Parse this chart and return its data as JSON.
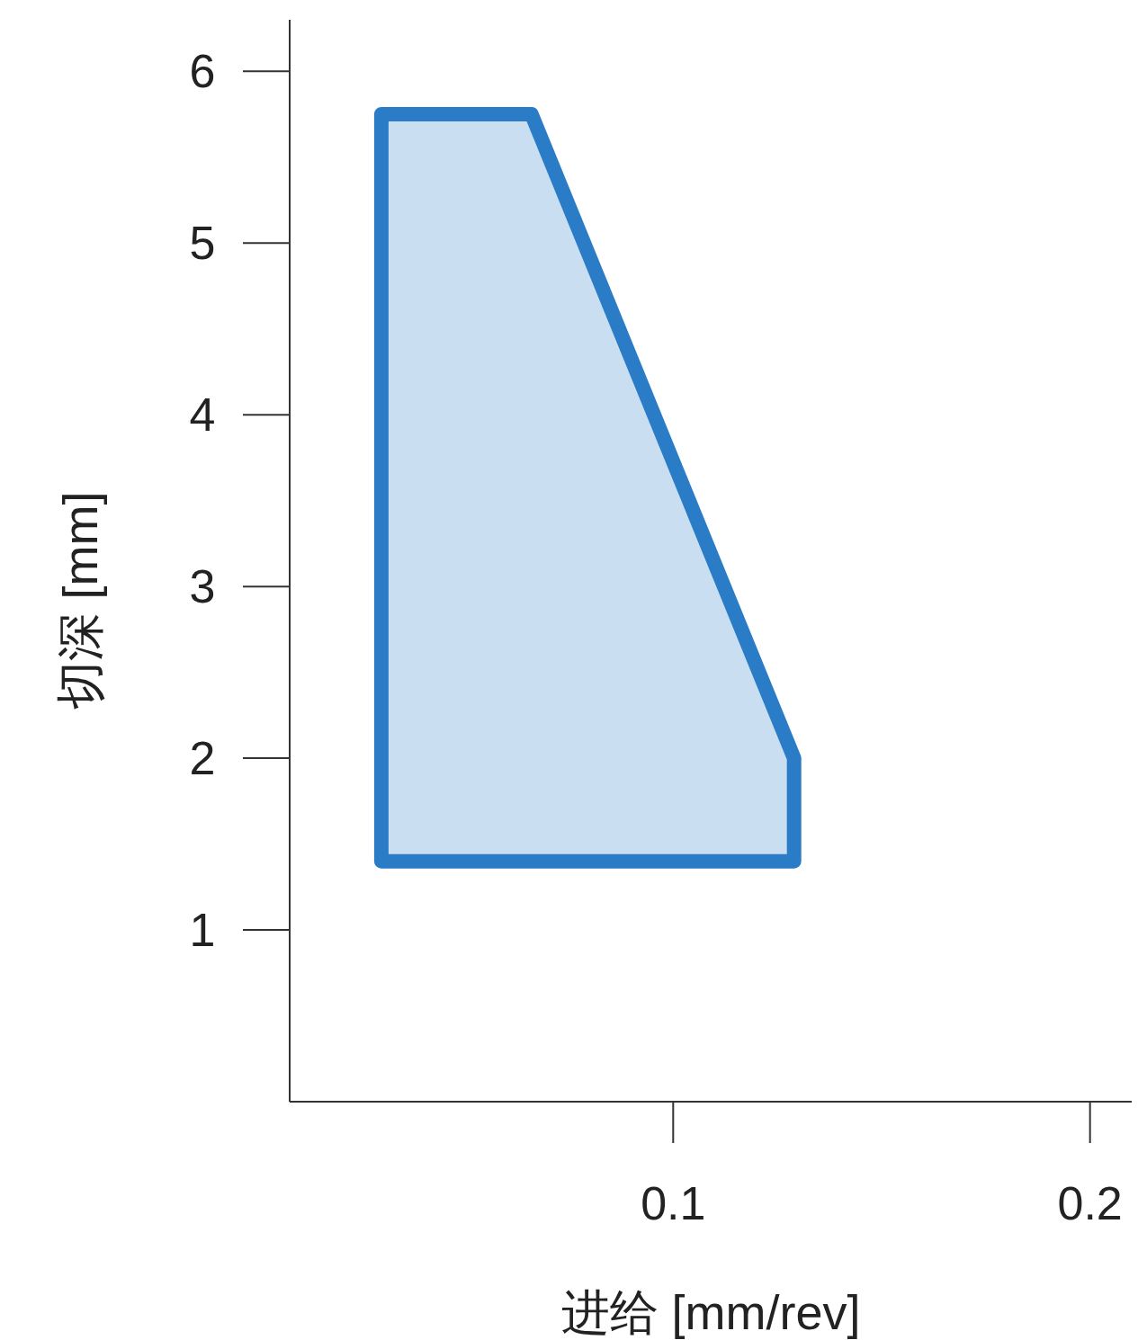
{
  "chart_data": {
    "type": "area",
    "xlabel": "进给 [mm/rev]",
    "ylabel": "切深 [mm]",
    "xlim": [
      0.008,
      0.21
    ],
    "ylim": [
      0,
      6.3
    ],
    "xticks": [
      0.1,
      0.2
    ],
    "yticks": [
      1,
      2,
      3,
      4,
      5,
      6
    ],
    "series": [
      {
        "color": "#2a7cc7",
        "x": [
          0.03,
          0.03,
          0.066,
          0.129,
          0.129
        ],
        "values": [
          1.4,
          5.75,
          5.75,
          2.0,
          1.4
        ]
      }
    ]
  }
}
